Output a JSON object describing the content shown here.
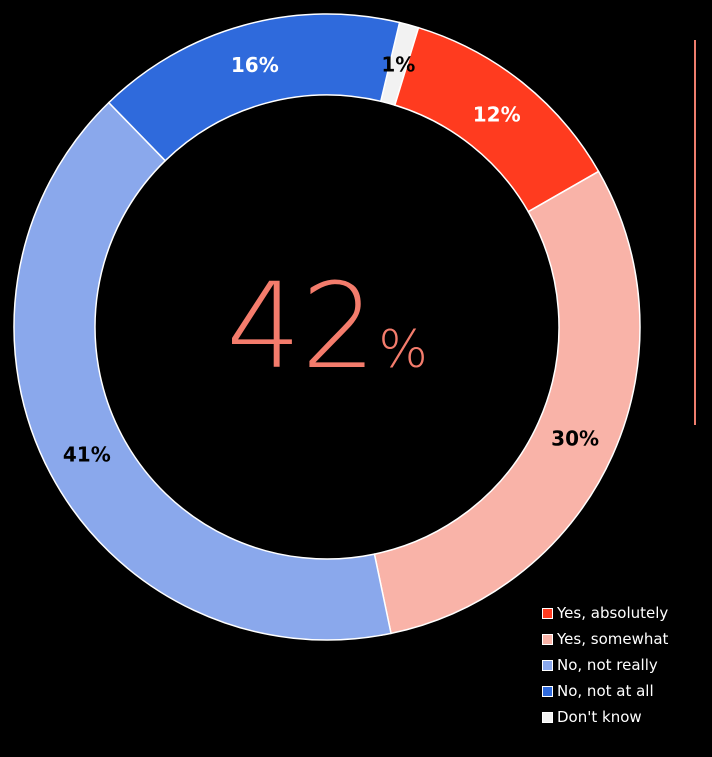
{
  "chart_data": {
    "type": "pie",
    "variant": "donut",
    "center_value": "42",
    "center_unit": "%",
    "center_color": "#f47c6c",
    "categories": [
      "Yes, absolutely",
      "Yes, somewhat",
      "No, not really",
      "No, not at all",
      "Don't know"
    ],
    "values": [
      12,
      30,
      41,
      16,
      1
    ],
    "value_labels": [
      "12%",
      "30%",
      "41%",
      "16%",
      "1%"
    ],
    "colors": [
      "#ff3b1f",
      "#f9b3a8",
      "#8aa8ec",
      "#2f6adc",
      "#f2f2f2"
    ],
    "label_colors": [
      "#ffffff",
      "#000000",
      "#000000",
      "#ffffff",
      "#000000"
    ],
    "legend_position": "bottom-right",
    "divider_color": "#ee7d6d",
    "background": "#000000"
  }
}
